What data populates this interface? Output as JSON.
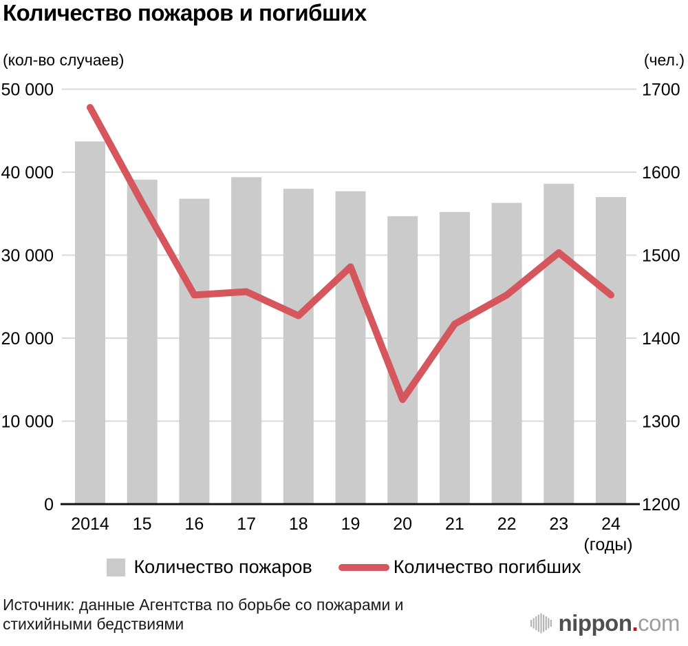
{
  "title": "Количество пожаров и погибших",
  "units": {
    "left": "(кол-во случаев)",
    "right": "(чел.)"
  },
  "source": {
    "line1": "Источник: данные Агентства по борьбе со пожарами и",
    "line2": "стихийными бедствиями"
  },
  "logo": {
    "icon": "soundwave-icon",
    "brand_bold": "nippon",
    "dot": ".",
    "brand_light": "com"
  },
  "colors": {
    "bar": "#cbcbcb",
    "line": "#d5565c",
    "grid": "#d9d9d9",
    "axis": "#111111",
    "text": "#000000",
    "source_text": "#1a1a1a",
    "logo_dark": "#4f4f4f",
    "logo_light": "#9e9e9e",
    "logo_red": "#e60012",
    "logo_icon": "#b5b5b5"
  },
  "chart_data": {
    "type": "bar",
    "title": "Количество пожаров и погибших",
    "categories": [
      "2014",
      "15",
      "16",
      "17",
      "18",
      "19",
      "20",
      "21",
      "22",
      "23",
      "24"
    ],
    "x_axis_note": "(годы)",
    "grid": true,
    "legend_position": "bottom",
    "series": [
      {
        "name": "Количество пожаров",
        "kind": "bar",
        "axis": "left",
        "values": [
          43700,
          39100,
          36800,
          39400,
          38000,
          37700,
          34700,
          35200,
          36300,
          38600,
          37000
        ]
      },
      {
        "name": "Количество погибших",
        "kind": "line",
        "axis": "right",
        "values": [
          1678,
          1563,
          1452,
          1456,
          1427,
          1486,
          1326,
          1417,
          1452,
          1503,
          1452
        ]
      }
    ],
    "left_axis": {
      "label": "(кол-во случаев)",
      "min": 0,
      "max": 50000,
      "ticks": [
        "50 000",
        "40 000",
        "30 000",
        "20 000",
        "10 000",
        "0"
      ]
    },
    "right_axis": {
      "label": "(чел.)",
      "min": 1200,
      "max": 1700,
      "ticks": [
        "1700",
        "1600",
        "1500",
        "1400",
        "1300",
        "1200"
      ]
    }
  }
}
